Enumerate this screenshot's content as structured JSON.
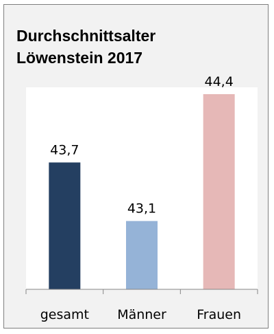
{
  "chart_data": {
    "type": "bar",
    "title_lines": [
      "Durchschnittsalter",
      "Löwenstein 2017"
    ],
    "categories": [
      "gesamt",
      "Männer",
      "Frauen"
    ],
    "values": [
      43.7,
      43.1,
      44.4
    ],
    "value_labels": [
      "43,7",
      "43,1",
      "44,4"
    ],
    "colors": [
      "#243f61",
      "#95b3d7",
      "#e6b8b7"
    ],
    "xlabel": "",
    "ylabel": "",
    "ylim": [
      42.4,
      44.4
    ],
    "grid": false,
    "legend": "none"
  }
}
